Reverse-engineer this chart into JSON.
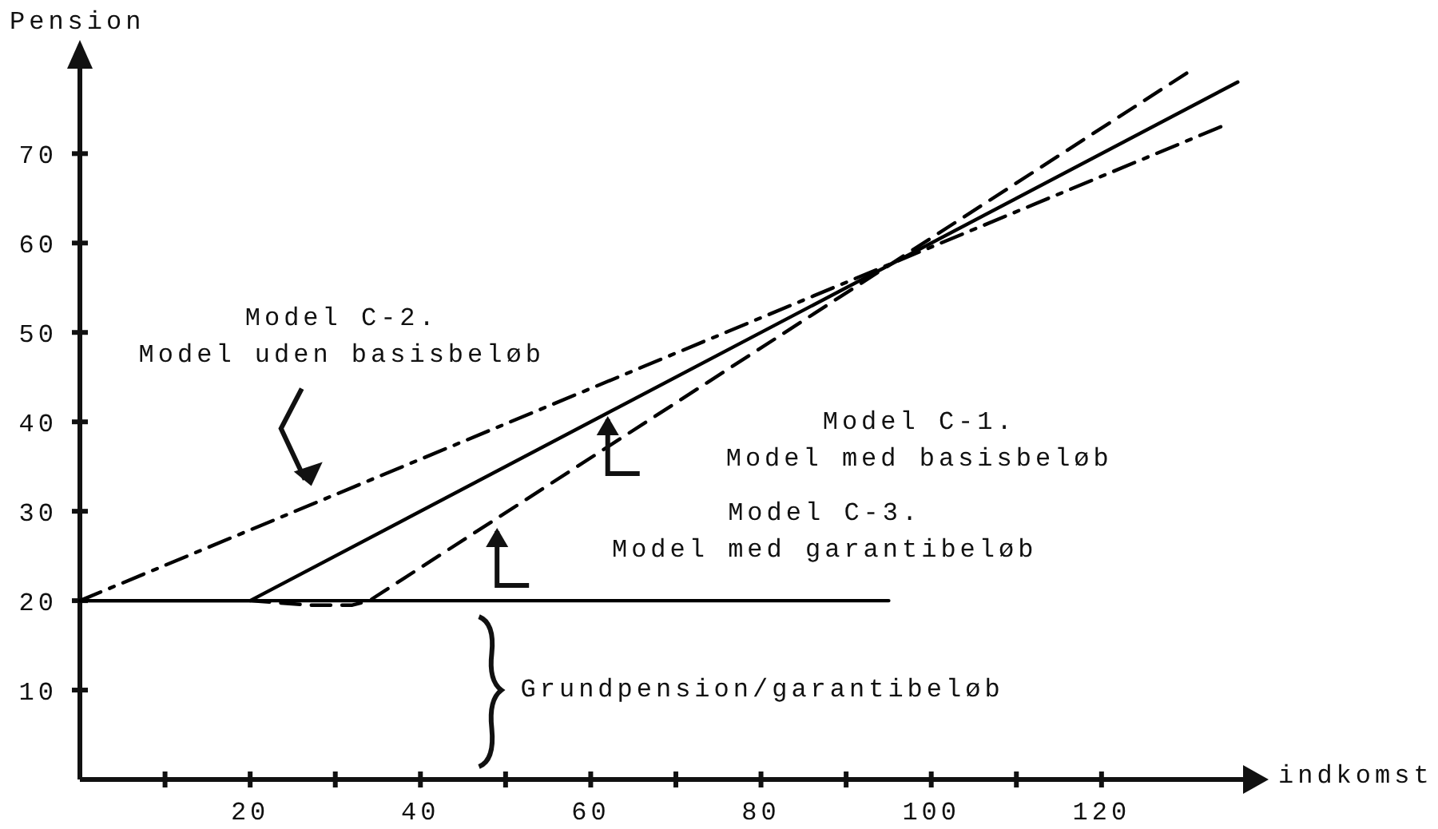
{
  "chart_data": {
    "type": "line",
    "xlabel": "indkomst",
    "ylabel": "Pension",
    "xlim": [
      0,
      137
    ],
    "ylim": [
      0,
      82
    ],
    "xticks": [
      {
        "value": 10,
        "label": null
      },
      20,
      {
        "value": 30,
        "label": null
      },
      40,
      {
        "value": 50,
        "label": null
      },
      60,
      {
        "value": 70,
        "label": null
      },
      80,
      {
        "value": 90,
        "label": null
      },
      100,
      {
        "value": 110,
        "label": null
      },
      120
    ],
    "yticks": [
      10,
      20,
      30,
      40,
      50,
      60,
      70
    ],
    "grid": false,
    "marker": "none",
    "series": [
      {
        "color": "#000000",
        "line_style": "solid",
        "x": [
          0,
          95
        ],
        "values": [
          20,
          20
        ]
      },
      {
        "color": "#000000",
        "line_style": "solid",
        "x": [
          0,
          20,
          136
        ],
        "values": [
          20,
          20,
          78
        ]
      },
      {
        "color": "#000000",
        "line_style": "dashdot",
        "x": [
          0,
          134
        ],
        "values": [
          20,
          73
        ]
      },
      {
        "color": "#000000",
        "line_style": "dashed",
        "x": [
          20,
          27,
          32,
          34,
          130
        ],
        "values": [
          20,
          19.5,
          19.5,
          20,
          79
        ]
      }
    ],
    "annotations": [
      "Model C-2.\nModel uden basisbeløb",
      "Model C-1.\nModel med basisbeløb",
      "Model C-3.\nModel med garantibeløb",
      "Grundpension/garantibeløb"
    ]
  }
}
